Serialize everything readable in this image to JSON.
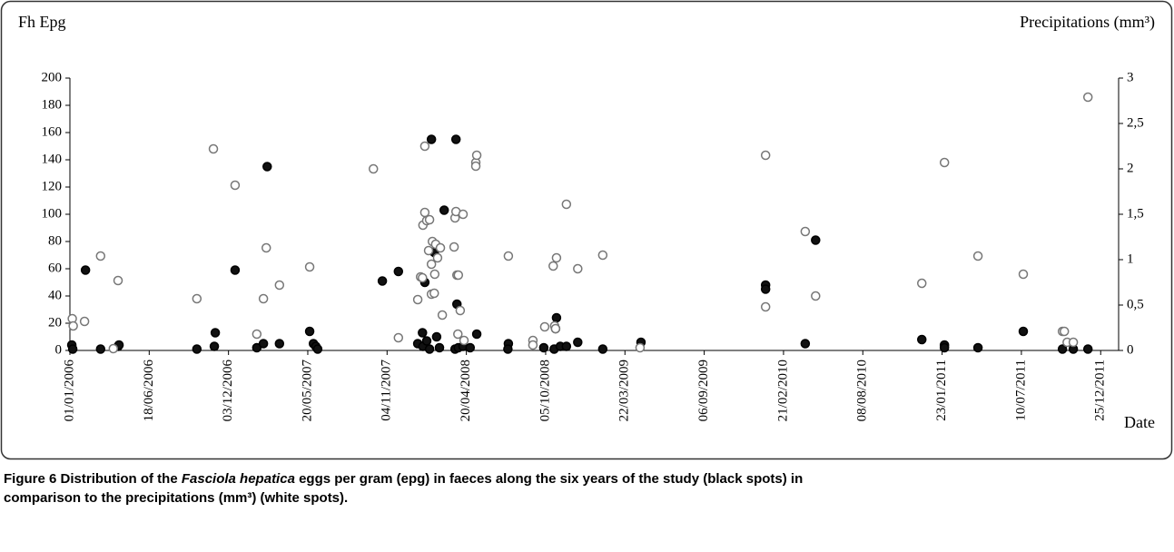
{
  "chart_data": {
    "type": "scatter",
    "ylabel": "Fh Epg",
    "y2label": "Precipitations (mm³)",
    "xlabel": "Date",
    "caption": {
      "label": "Figure 6",
      "text1": "Distribution of the",
      "italic": "Fasciola hepatica",
      "text2": "eggs per gram (epg) in faeces along the six years of the study (black spots) in",
      "text3": "comparison to the precipitations (mm³) (white spots)."
    },
    "xlim": [
      "01/01/2006",
      "01/02/2012"
    ],
    "xticks": [
      "01/01/2006",
      "18/06/2006",
      "03/12/2006",
      "20/05/2007",
      "04/11/2007",
      "20/04/2008",
      "05/10/2008",
      "22/03/2009",
      "06/09/2009",
      "21/02/2010",
      "08/08/2010",
      "23/01/2011",
      "10/07/2011",
      "25/12/2011"
    ],
    "ylim": [
      0,
      200
    ],
    "yticks": [
      0,
      20,
      40,
      60,
      80,
      100,
      120,
      140,
      160,
      180,
      200
    ],
    "y2lim": [
      0,
      3
    ],
    "y2ticks": [
      0,
      {
        "value": 0.5,
        "label": "0,5"
      },
      1,
      {
        "value": 1.5,
        "label": "1,5"
      },
      2,
      {
        "value": 2.5,
        "label": "2,5"
      },
      3
    ],
    "series": [
      {
        "color": "#111111",
        "edgecolor": "#000000",
        "x": [
          "05/01/2006",
          "07/01/2006",
          "03/02/2006",
          "07/03/2006",
          "13/04/2006",
          "15/04/2006",
          "27/09/2006",
          "03/11/2006",
          "05/11/2006",
          "17/12/2006",
          "01/02/2007",
          "15/02/2007",
          "23/02/2007",
          "21/03/2007",
          "24/05/2007",
          "01/06/2007",
          "06/06/2007",
          "10/06/2007",
          "25/10/2007",
          "28/11/2007",
          "08/01/2008",
          "18/01/2008",
          "19/01/2008",
          "23/01/2008",
          "27/01/2008",
          "02/02/2008",
          "06/02/2008",
          "12/02/2008",
          "17/02/2008",
          "23/02/2008",
          "04/03/2008",
          "27/03/2008",
          "29/03/2008",
          "31/03/2008",
          "03/04/2008",
          "13/04/2008",
          "28/04/2008",
          "12/05/2008",
          "18/07/2008",
          "17/07/2008",
          "01/10/2008",
          "23/10/2008",
          "26/10/2008",
          "28/10/2008",
          "05/11/2008",
          "18/11/2008",
          "12/12/2008",
          "03/02/2009",
          "25/04/2009",
          "14/01/2010",
          "14/01/2010",
          "08/04/2010",
          "30/04/2010",
          "11/12/2010",
          "28/01/2011",
          "28/01/2011",
          "09/04/2011",
          "14/07/2011",
          "05/10/2011",
          "28/10/2011",
          "28/11/2011"
        ],
        "values": [
          4,
          1,
          59,
          1,
          3,
          4,
          1,
          3,
          13,
          59,
          2,
          5,
          135,
          5,
          14,
          5,
          3,
          1,
          51,
          58,
          5,
          13,
          3,
          50,
          7,
          1,
          155,
          72,
          10,
          2,
          103,
          1,
          155,
          34,
          2,
          3,
          2,
          12,
          5,
          1,
          2,
          1,
          16,
          24,
          3,
          3,
          6,
          1,
          6,
          48,
          45,
          5,
          81,
          8,
          4,
          2,
          2,
          14,
          1,
          1,
          1
        ]
      },
      {
        "color": "#ffffff",
        "edgecolor": "#777777",
        "axis": "y2",
        "x": [
          "06/01/2006",
          "08/01/2006",
          "01/02/2006",
          "07/03/2006",
          "03/04/2006",
          "13/04/2006",
          "27/09/2006",
          "01/11/2006",
          "17/12/2006",
          "01/02/2007",
          "15/02/2007",
          "21/02/2007",
          "21/03/2007",
          "24/05/2007",
          "06/10/2007",
          "28/11/2007",
          "08/01/2008",
          "14/01/2008",
          "18/01/2008",
          "19/01/2008",
          "23/01/2008",
          "23/01/2008",
          "27/01/2008",
          "31/01/2008",
          "02/02/2008",
          "06/02/2008",
          "06/02/2008",
          "08/02/2008",
          "12/02/2008",
          "13/02/2008",
          "15/02/2008",
          "19/02/2008",
          "25/02/2008",
          "29/02/2008",
          "25/03/2008",
          "27/03/2008",
          "29/03/2008",
          "31/03/2008",
          "02/04/2008",
          "03/04/2008",
          "07/04/2008",
          "13/04/2008",
          "15/04/2008",
          "10/05/2008",
          "10/05/2008",
          "12/05/2008",
          "18/07/2008",
          "08/09/2008",
          "08/09/2008",
          "03/10/2008",
          "21/10/2008",
          "24/10/2008",
          "26/10/2008",
          "28/10/2008",
          "18/11/2008",
          "12/12/2008",
          "03/02/2009",
          "23/04/2009",
          "14/01/2010",
          "14/01/2010",
          "08/04/2010",
          "30/04/2010",
          "11/12/2010",
          "28/01/2011",
          "09/04/2011",
          "14/07/2011",
          "05/10/2011",
          "09/10/2011",
          "15/10/2011",
          "28/10/2011",
          "28/11/2011"
        ],
        "values": [
          0.35,
          0.27,
          0.32,
          1.04,
          0.02,
          0.77,
          0.57,
          2.22,
          1.82,
          0.18,
          0.57,
          1.13,
          0.72,
          0.92,
          2.0,
          0.14,
          0.56,
          0.81,
          0.8,
          1.38,
          2.25,
          1.52,
          1.43,
          1.1,
          1.44,
          0.62,
          0.95,
          1.2,
          0.63,
          0.84,
          1.17,
          1.02,
          1.13,
          0.39,
          1.14,
          1.46,
          1.53,
          0.83,
          0.18,
          0.83,
          0.44,
          1.5,
          0.11,
          2.07,
          2.03,
          2.15,
          1.04,
          0.11,
          0.06,
          0.26,
          0.93,
          0.27,
          0.24,
          1.02,
          1.61,
          0.9,
          1.05,
          0.03,
          2.15,
          0.48,
          1.31,
          0.6,
          0.74,
          2.07,
          1.04,
          0.84,
          0.21,
          0.21,
          0.09,
          0.09,
          2.79
        ]
      }
    ]
  }
}
